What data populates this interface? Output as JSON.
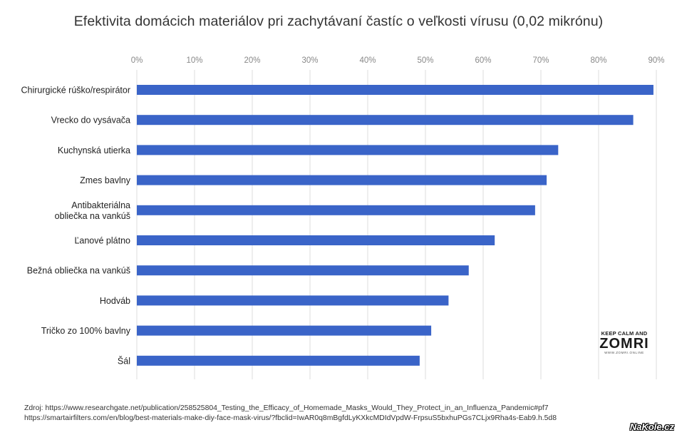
{
  "chart_data": {
    "type": "bar",
    "orientation": "horizontal",
    "title": "Efektivita domácich materiálov pri zachytávaní častíc o veľkosti vírusu (0,02 mikrónu)",
    "categories": [
      "Chirurgické rúško/respirátor",
      "Vrecko do vysávača",
      "Kuchynská utierka",
      "Zmes bavlny",
      "Antibakteriálna obliečka na vankúš",
      "Ľanové plátno",
      "Bežná obliečka na vankúš",
      "Hodváb",
      "Tričko zo 100% bavlny",
      "Šál"
    ],
    "category_label_lines": [
      [
        "Chirurgické rúško/respirátor"
      ],
      [
        "Vrecko do vysávača"
      ],
      [
        "Kuchynská utierka"
      ],
      [
        "Zmes bavlny"
      ],
      [
        "Antibakteriálna",
        "obliečka na vankúš"
      ],
      [
        "Ľanové plátno"
      ],
      [
        "Bežná obliečka na vankúš"
      ],
      [
        "Hodváb"
      ],
      [
        "Tričko zo 100% bavlny"
      ],
      [
        "Šál"
      ]
    ],
    "values": [
      89.5,
      86,
      73,
      71,
      69,
      62,
      57.5,
      54,
      51,
      49
    ],
    "xlim": [
      0,
      90
    ],
    "x_ticks": [
      0,
      10,
      20,
      30,
      40,
      50,
      60,
      70,
      80,
      90
    ],
    "x_tick_labels": [
      "0%",
      "10%",
      "20%",
      "30%",
      "40%",
      "50%",
      "60%",
      "70%",
      "80%",
      "90%"
    ],
    "x_axis_position": "top",
    "grid": true,
    "bar_color": "#3a64c8",
    "grid_color": "#dddddd"
  },
  "source": {
    "line1": "Zdroj: https://www.researchgate.net/publication/258525804_Testing_the_Efficacy_of_Homemade_Masks_Would_They_Protect_in_an_Influenza_Pandemic#pf7",
    "line2": "https://smartairfilters.com/en/blog/best-materials-make-diy-face-mask-virus/?fbclid=IwAR0q8mBgfdLyKXkcMDIdVpdW-FrpsuS5bxhuPGs7CLjx9Rha4s-Eab9.h.5d8"
  },
  "logo": {
    "line1": "KEEP CALM AND",
    "line2": "ZOMRI",
    "line3": "WWW.ZOMRI.ONLINE"
  },
  "watermark": "NaKole.cz"
}
